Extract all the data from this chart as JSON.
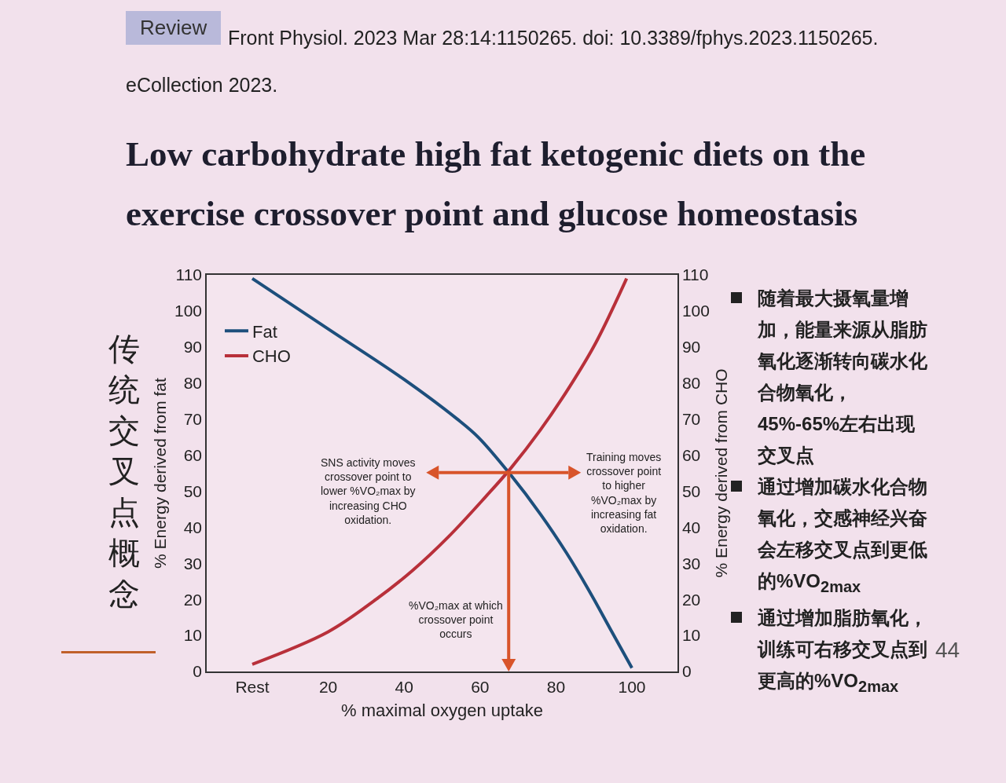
{
  "chart_data": {
    "type": "line",
    "title": "Low carbohydrate high fat ketogenic diets on the exercise crossover point and glucose homeostasis",
    "subtitle": "Front Physiol. 2023 Mar 28:14:1150265. doi: 10.3389/fphys.2023.1150265. eCollection 2023.",
    "xlabel": "% maximal oxygen uptake",
    "ylabel": "% Energy derived from fat",
    "y2label": "% Energy derived from CHO",
    "xlim": [
      -12,
      112
    ],
    "xticks": [
      {
        "value": 0,
        "label": "Rest"
      },
      20,
      40,
      60,
      80,
      100
    ],
    "ylim": [
      0,
      110
    ],
    "yticks": [
      0,
      10,
      20,
      30,
      40,
      50,
      60,
      70,
      80,
      90,
      100,
      110
    ],
    "y2lim": [
      0,
      110
    ],
    "y2ticks": [
      0,
      10,
      20,
      30,
      40,
      50,
      60,
      70,
      80,
      90,
      100,
      110
    ],
    "legend": "top left",
    "grid": false,
    "marker": "none",
    "line_style": "solid",
    "series": [
      {
        "name": "Fat",
        "color": "#1d4f7c",
        "x": [
          0,
          20,
          40,
          54,
          59.5,
          68,
          76,
          82.7,
          88.4,
          94.2,
          100
        ],
        "values": [
          109,
          95,
          81,
          70,
          65,
          54.6,
          43.5,
          33,
          23,
          12,
          1
        ]
      },
      {
        "name": "CHO",
        "color": "#b8303a",
        "axis": "y2",
        "x": [
          0,
          20,
          32.6,
          42.2,
          51.8,
          61.5,
          68.2,
          75.9,
          83.6,
          90.4,
          98.6
        ],
        "values": [
          2,
          11,
          20,
          28,
          37.5,
          48.5,
          56.5,
          67,
          79,
          91,
          109
        ]
      }
    ],
    "annotations": [
      "SNS activity moves crossover point to lower %VO₂max by increasing CHO oxidation.",
      "Training moves crossover point to higher %VO₂max by increasing fat oxidation.",
      "%VO₂max at which crossover point occurs",
      "Review",
      "传统交叉点概念",
      "随着最大摄氧量增加，能量来源从脂肪氧化逐渐转向碳水化合物氧化，45%-65%左右出现交叉点",
      "通过增加碳水化合物氧化，交感神经兴奋会左移交叉点到更低的%VO$_{2max}$",
      "通过增加脂肪氧化，训练可右移交叉点到更高的%VO$_{2max}$",
      "44"
    ]
  }
}
